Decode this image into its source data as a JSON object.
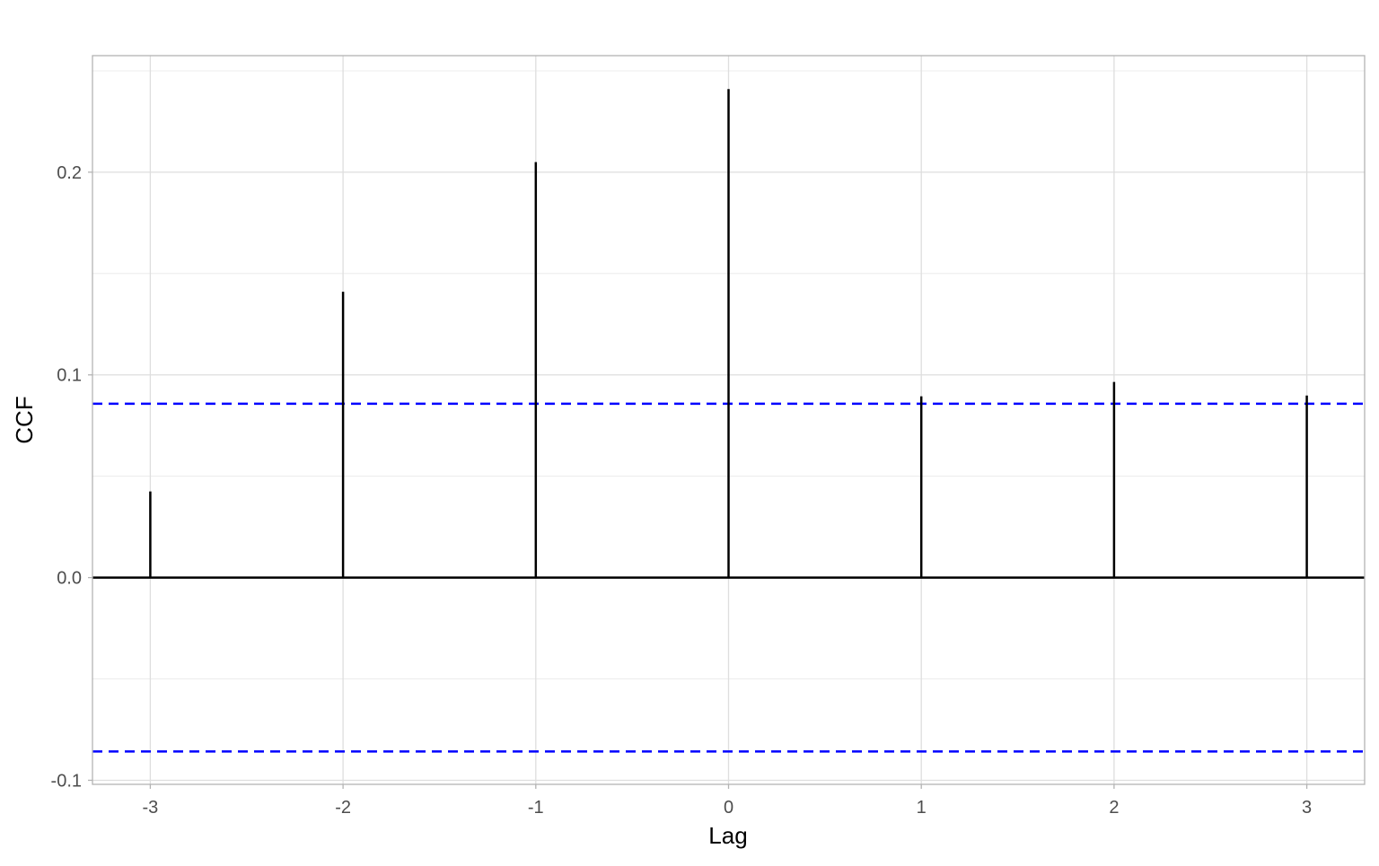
{
  "chart_data": {
    "type": "bar",
    "style": "lollipop-stems",
    "title": "",
    "xlabel": "Lag",
    "ylabel": "CCF",
    "x": [
      -3,
      -2,
      -1,
      0,
      1,
      2,
      3
    ],
    "values": [
      0.0425,
      0.141,
      0.205,
      0.241,
      0.0894,
      0.0965,
      0.0898
    ],
    "confidence_bounds": [
      0.0858,
      -0.0858
    ],
    "xlim": [
      -3.3,
      3.3
    ],
    "ylim": [
      -0.102,
      0.2575
    ],
    "xticks": [
      "-3",
      "-2",
      "-1",
      "0",
      "1",
      "2",
      "3"
    ],
    "yticks": [
      "-0.1",
      "0.0",
      "0.1",
      "0.2"
    ],
    "grid": true,
    "colors": {
      "stems": "#000000",
      "bounds": "#0000ff",
      "grid": "#dedede",
      "border": "#b3b3b3"
    }
  }
}
